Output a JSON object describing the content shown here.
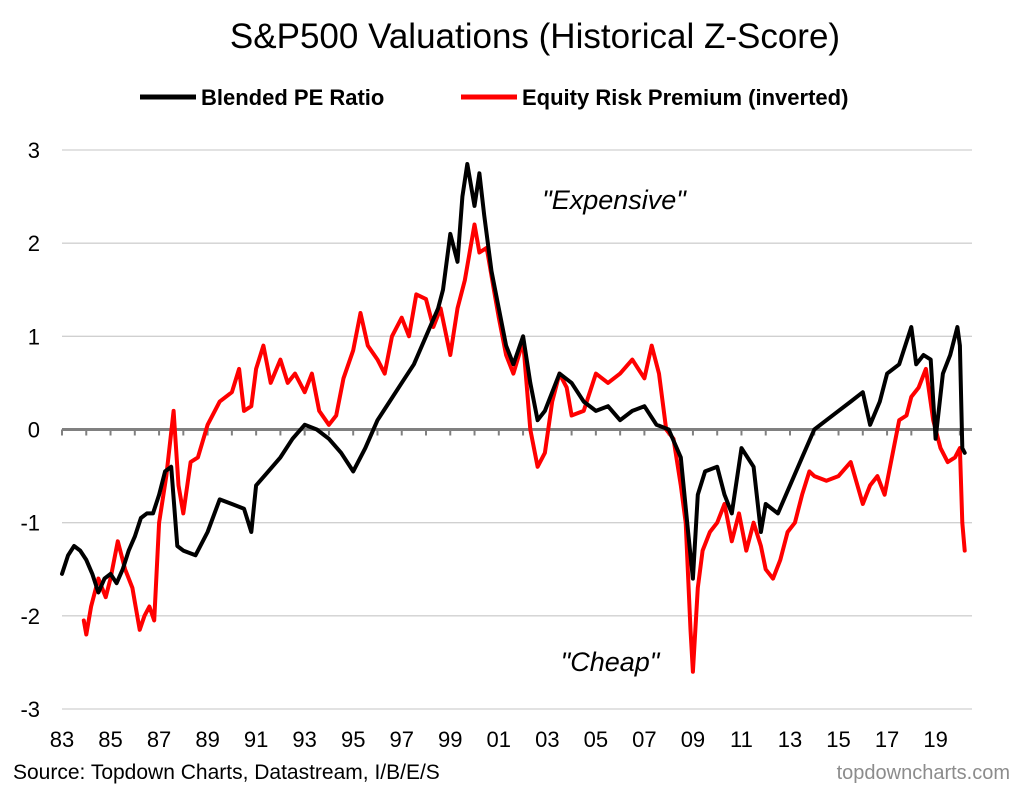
{
  "chart_data": {
    "type": "line",
    "title": "S&P500 Valuations (Historical Z-Score)",
    "ylim": [
      -3,
      3
    ],
    "yticks": [
      3,
      2,
      1,
      0,
      -1,
      -2,
      -3
    ],
    "xlim": [
      1983,
      2020.5
    ],
    "xtick_labels": [
      "83",
      "85",
      "87",
      "89",
      "91",
      "93",
      "95",
      "97",
      "99",
      "01",
      "03",
      "05",
      "07",
      "09",
      "11",
      "13",
      "15",
      "17",
      "19"
    ],
    "xtick_years": [
      1983,
      1985,
      1987,
      1989,
      1991,
      1993,
      1995,
      1997,
      1999,
      2001,
      2003,
      2005,
      2007,
      2009,
      2011,
      2013,
      2015,
      2017,
      2019
    ],
    "grid": true,
    "legend_placement": "top-center",
    "series": [
      {
        "name": "Blended PE Ratio",
        "color": "#000000",
        "x": [
          1983.0,
          1983.25,
          1983.5,
          1983.75,
          1984.0,
          1984.25,
          1984.5,
          1984.75,
          1985.0,
          1985.25,
          1985.5,
          1985.75,
          1986.0,
          1986.25,
          1986.5,
          1986.75,
          1987.0,
          1987.25,
          1987.5,
          1987.75,
          1988.0,
          1988.5,
          1989.0,
          1989.5,
          1990.0,
          1990.5,
          1990.8,
          1991.0,
          1991.5,
          1992.0,
          1992.5,
          1993.0,
          1993.5,
          1994.0,
          1994.5,
          1995.0,
          1995.5,
          1996.0,
          1996.5,
          1997.0,
          1997.5,
          1998.0,
          1998.5,
          1998.7,
          1999.0,
          1999.3,
          1999.5,
          1999.7,
          2000.0,
          2000.2,
          2000.4,
          2000.7,
          2001.0,
          2001.3,
          2001.6,
          2002.0,
          2002.3,
          2002.6,
          2002.9,
          2003.2,
          2003.5,
          2004.0,
          2004.5,
          2005.0,
          2005.5,
          2006.0,
          2006.5,
          2007.0,
          2007.5,
          2008.0,
          2008.5,
          2008.8,
          2009.0,
          2009.2,
          2009.5,
          2010.0,
          2010.3,
          2010.6,
          2011.0,
          2011.5,
          2011.8,
          2012.0,
          2012.5,
          2013.0,
          2013.5,
          2014.0,
          2014.5,
          2015.0,
          2015.5,
          2016.0,
          2016.3,
          2016.7,
          2017.0,
          2017.5,
          2018.0,
          2018.2,
          2018.5,
          2018.8,
          2019.0,
          2019.3,
          2019.6,
          2019.9,
          2020.0,
          2020.1,
          2020.2
        ],
        "values": [
          -1.55,
          -1.35,
          -1.25,
          -1.3,
          -1.4,
          -1.55,
          -1.75,
          -1.6,
          -1.55,
          -1.65,
          -1.5,
          -1.3,
          -1.15,
          -0.95,
          -0.9,
          -0.9,
          -0.7,
          -0.45,
          -0.4,
          -1.25,
          -1.3,
          -1.35,
          -1.1,
          -0.75,
          -0.8,
          -0.85,
          -1.1,
          -0.6,
          -0.45,
          -0.3,
          -0.1,
          0.05,
          0.0,
          -0.1,
          -0.25,
          -0.45,
          -0.2,
          0.1,
          0.3,
          0.5,
          0.7,
          1.0,
          1.3,
          1.5,
          2.1,
          1.8,
          2.5,
          2.85,
          2.4,
          2.75,
          2.3,
          1.7,
          1.3,
          0.9,
          0.7,
          1.0,
          0.5,
          0.1,
          0.2,
          0.4,
          0.6,
          0.5,
          0.3,
          0.2,
          0.25,
          0.1,
          0.2,
          0.25,
          0.05,
          0.0,
          -0.3,
          -1.1,
          -1.6,
          -0.7,
          -0.45,
          -0.4,
          -0.7,
          -0.9,
          -0.2,
          -0.4,
          -1.1,
          -0.8,
          -0.9,
          -0.6,
          -0.3,
          0.0,
          0.1,
          0.2,
          0.3,
          0.4,
          0.05,
          0.3,
          0.6,
          0.7,
          1.1,
          0.7,
          0.8,
          0.75,
          -0.1,
          0.6,
          0.8,
          1.1,
          0.9,
          -0.2,
          -0.25
        ]
      },
      {
        "name": "Equity Risk Premium (inverted)",
        "color": "#ff0000",
        "x": [
          1983.9,
          1984.0,
          1984.2,
          1984.5,
          1984.8,
          1985.0,
          1985.3,
          1985.6,
          1985.9,
          1986.0,
          1986.2,
          1986.4,
          1986.6,
          1986.8,
          1987.0,
          1987.3,
          1987.6,
          1987.8,
          1988.0,
          1988.3,
          1988.6,
          1989.0,
          1989.5,
          1990.0,
          1990.3,
          1990.5,
          1990.8,
          1991.0,
          1991.3,
          1991.6,
          1992.0,
          1992.3,
          1992.6,
          1993.0,
          1993.3,
          1993.6,
          1994.0,
          1994.3,
          1994.6,
          1995.0,
          1995.3,
          1995.6,
          1996.0,
          1996.3,
          1996.6,
          1997.0,
          1997.3,
          1997.6,
          1998.0,
          1998.3,
          1998.6,
          1999.0,
          1999.3,
          1999.6,
          2000.0,
          2000.2,
          2000.5,
          2000.8,
          2001.0,
          2001.3,
          2001.6,
          2002.0,
          2002.3,
          2002.6,
          2002.9,
          2003.2,
          2003.5,
          2003.8,
          2004.0,
          2004.5,
          2005.0,
          2005.5,
          2006.0,
          2006.5,
          2007.0,
          2007.3,
          2007.6,
          2007.9,
          2008.2,
          2008.5,
          2008.7,
          2008.9,
          2009.0,
          2009.2,
          2009.4,
          2009.7,
          2010.0,
          2010.3,
          2010.6,
          2010.9,
          2011.2,
          2011.5,
          2011.8,
          2012.0,
          2012.3,
          2012.6,
          2012.9,
          2013.2,
          2013.5,
          2013.8,
          2014.0,
          2014.5,
          2015.0,
          2015.5,
          2016.0,
          2016.3,
          2016.6,
          2016.9,
          2017.2,
          2017.5,
          2017.8,
          2018.0,
          2018.3,
          2018.6,
          2018.9,
          2019.2,
          2019.5,
          2019.8,
          2020.0,
          2020.1,
          2020.2
        ],
        "values": [
          -2.05,
          -2.2,
          -1.9,
          -1.6,
          -1.8,
          -1.6,
          -1.2,
          -1.5,
          -1.7,
          -1.85,
          -2.15,
          -2.0,
          -1.9,
          -2.05,
          -1.0,
          -0.5,
          0.2,
          -0.6,
          -0.9,
          -0.35,
          -0.3,
          0.05,
          0.3,
          0.4,
          0.65,
          0.2,
          0.25,
          0.65,
          0.9,
          0.5,
          0.75,
          0.5,
          0.6,
          0.4,
          0.6,
          0.2,
          0.05,
          0.15,
          0.55,
          0.85,
          1.25,
          0.9,
          0.75,
          0.6,
          1.0,
          1.2,
          1.0,
          1.45,
          1.4,
          1.1,
          1.3,
          0.8,
          1.3,
          1.6,
          2.2,
          1.9,
          1.95,
          1.5,
          1.2,
          0.8,
          0.6,
          0.95,
          0.0,
          -0.4,
          -0.25,
          0.3,
          0.6,
          0.45,
          0.15,
          0.2,
          0.6,
          0.5,
          0.6,
          0.75,
          0.55,
          0.9,
          0.6,
          0.0,
          -0.1,
          -0.6,
          -1.0,
          -2.15,
          -2.6,
          -1.7,
          -1.3,
          -1.1,
          -1.0,
          -0.8,
          -1.2,
          -0.9,
          -1.3,
          -1.0,
          -1.25,
          -1.5,
          -1.6,
          -1.4,
          -1.1,
          -1.0,
          -0.7,
          -0.45,
          -0.5,
          -0.55,
          -0.5,
          -0.35,
          -0.8,
          -0.6,
          -0.5,
          -0.7,
          -0.3,
          0.1,
          0.15,
          0.35,
          0.45,
          0.65,
          0.1,
          -0.2,
          -0.35,
          -0.3,
          -0.2,
          -1.0,
          -1.3
        ]
      }
    ]
  },
  "annotations": {
    "expensive": "\"Expensive\"",
    "cheap": "\"Cheap\""
  },
  "footer": {
    "source": "Source: Topdown Charts, Datastream, I/B/E/S",
    "brand": "topdowncharts.com"
  }
}
